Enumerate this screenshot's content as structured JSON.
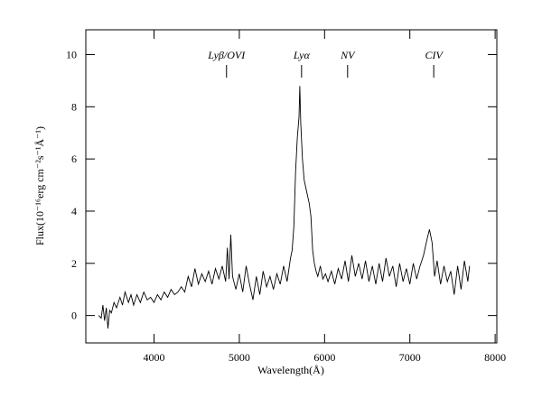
{
  "chart_data": {
    "type": "line",
    "xlabel": "Wavelength(Å)",
    "ylabel": "Flux(10⁻¹⁶erg cm⁻²s⁻¹Å⁻¹)",
    "xlim": [
      3200,
      8020
    ],
    "ylim": [
      -1.05,
      10.95
    ],
    "xticks": [
      4000,
      5000,
      6000,
      7000,
      8000
    ],
    "yticks": [
      0,
      2,
      4,
      6,
      8,
      10
    ],
    "annotations": [
      {
        "label": "Lyβ/OVI",
        "x": 4850
      },
      {
        "label": "Lyα",
        "x": 5730
      },
      {
        "label": "NV",
        "x": 6270
      },
      {
        "label": "CIV",
        "x": 7280
      }
    ],
    "series": [
      {
        "color": "#000000",
        "x": [
          3350,
          3380,
          3400,
          3420,
          3440,
          3460,
          3480,
          3500,
          3530,
          3560,
          3600,
          3630,
          3660,
          3700,
          3730,
          3760,
          3800,
          3840,
          3880,
          3920,
          3960,
          4000,
          4040,
          4080,
          4120,
          4160,
          4200,
          4240,
          4280,
          4320,
          4360,
          4400,
          4440,
          4480,
          4520,
          4560,
          4600,
          4640,
          4680,
          4720,
          4760,
          4800,
          4840,
          4860,
          4880,
          4900,
          4920,
          4960,
          5000,
          5040,
          5080,
          5120,
          5160,
          5200,
          5240,
          5280,
          5320,
          5360,
          5400,
          5440,
          5480,
          5520,
          5560,
          5600,
          5620,
          5640,
          5660,
          5680,
          5700,
          5710,
          5720,
          5740,
          5760,
          5780,
          5800,
          5820,
          5840,
          5860,
          5880,
          5900,
          5920,
          5950,
          5980,
          6010,
          6040,
          6080,
          6120,
          6160,
          6200,
          6240,
          6280,
          6320,
          6360,
          6400,
          6440,
          6480,
          6520,
          6560,
          6600,
          6640,
          6680,
          6720,
          6760,
          6800,
          6840,
          6880,
          6920,
          6960,
          7000,
          7040,
          7080,
          7120,
          7160,
          7200,
          7230,
          7260,
          7290,
          7320,
          7360,
          7400,
          7440,
          7480,
          7520,
          7560,
          7600,
          7640,
          7680,
          7700
        ],
        "values": [
          0.0,
          -0.1,
          0.4,
          -0.2,
          0.3,
          -0.5,
          0.2,
          0.1,
          0.5,
          0.3,
          0.7,
          0.4,
          0.9,
          0.5,
          0.8,
          0.4,
          0.8,
          0.5,
          0.9,
          0.6,
          0.7,
          0.5,
          0.8,
          0.6,
          0.9,
          0.7,
          1.0,
          0.8,
          0.9,
          1.1,
          0.9,
          1.5,
          1.1,
          1.8,
          1.2,
          1.6,
          1.3,
          1.7,
          1.2,
          1.8,
          1.4,
          1.9,
          1.3,
          2.6,
          1.4,
          3.1,
          1.5,
          1.0,
          1.6,
          0.9,
          1.9,
          1.2,
          0.6,
          1.5,
          0.8,
          1.7,
          1.1,
          1.5,
          1.0,
          1.6,
          1.2,
          1.9,
          1.3,
          2.2,
          2.5,
          3.4,
          5.5,
          6.8,
          7.6,
          8.8,
          7.4,
          6.0,
          5.2,
          4.9,
          4.6,
          4.3,
          3.8,
          2.5,
          2.0,
          1.7,
          1.5,
          1.9,
          1.4,
          1.6,
          1.3,
          1.7,
          1.2,
          1.8,
          1.4,
          2.1,
          1.3,
          2.3,
          1.5,
          2.0,
          1.4,
          2.1,
          1.3,
          1.9,
          1.2,
          2.0,
          1.3,
          2.2,
          1.5,
          1.9,
          1.1,
          2.0,
          1.3,
          1.8,
          1.2,
          2.0,
          1.4,
          1.9,
          2.3,
          2.9,
          3.3,
          2.8,
          1.5,
          2.1,
          1.2,
          1.9,
          1.3,
          1.7,
          0.8,
          1.9,
          1.0,
          2.1,
          1.3,
          1.9
        ]
      }
    ]
  }
}
